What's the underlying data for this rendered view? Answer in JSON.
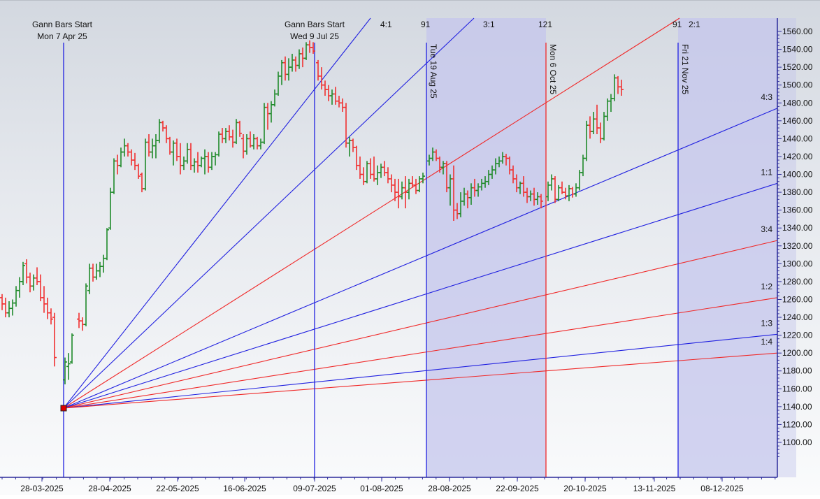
{
  "colors": {
    "up": "#1f8a2a",
    "down": "#f03030",
    "blue_line": "#2020e0",
    "red_line": "#f02828",
    "shade": "#c4c6ec",
    "axis": "#2a2a9a",
    "text": "#111111"
  },
  "annotations": {
    "start1_title": "Gann Bars Start",
    "start1_date": "Mon 7 Apr 25",
    "start2_title": "Gann Bars Start",
    "start2_date": "Wed 9 Jul 25",
    "label_4_1": "4:1",
    "label_91a": "91",
    "label_3_1": "3:1",
    "label_121": "121",
    "label_91b": "91",
    "label_2_1": "2:1",
    "vline_aug": "Tue 19 Aug 25",
    "vline_oct": "Mon 6 Oct 25",
    "vline_nov": "Fri 21 Nov 25"
  },
  "chart_data": {
    "type": "ohlc-bar",
    "title": "",
    "xlabel": "",
    "ylabel": "",
    "ylim": [
      1085,
      1575
    ],
    "grid": false,
    "x_ticks": [
      "28-03-2025",
      "28-04-2025",
      "22-05-2025",
      "16-06-2025",
      "09-07-2025",
      "01-08-2025",
      "28-08-2025",
      "22-09-2025",
      "20-10-2025",
      "13-11-2025",
      "08-12-2025"
    ],
    "y_ticks": [
      "1560.00",
      "1540.00",
      "1520.00",
      "1500.00",
      "1480.00",
      "1460.00",
      "1440.00",
      "1420.00",
      "1400.00",
      "1380.00",
      "1360.00",
      "1340.00",
      "1320.00",
      "1300.00",
      "1280.00",
      "1260.00",
      "1240.00",
      "1220.00",
      "1200.00",
      "1180.00",
      "1160.00",
      "1140.00",
      "1120.00",
      "1100.00"
    ],
    "gann_fan": {
      "origin": {
        "date": "Mon 7 Apr 25",
        "price": 1135
      },
      "angles": [
        {
          "name": "4:1",
          "color": "blue"
        },
        {
          "name": "3:1",
          "color": "blue"
        },
        {
          "name": "2:1",
          "color": "red"
        },
        {
          "name": "4:3",
          "color": "blue",
          "end_price": 1474
        },
        {
          "name": "1:1",
          "color": "blue",
          "end_price": 1390
        },
        {
          "name": "3:4",
          "color": "red",
          "end_price": 1326
        },
        {
          "name": "1:2",
          "color": "red",
          "end_price": 1262
        },
        {
          "name": "1:3",
          "color": "blue",
          "end_price": 1221
        },
        {
          "name": "1:4",
          "color": "red",
          "end_price": 1200
        }
      ]
    },
    "vertical_lines": [
      {
        "label": "Gann Bars Start Mon 7 Apr 25",
        "color": "blue"
      },
      {
        "label": "Gann Bars Start Wed 9 Jul 25",
        "color": "blue"
      },
      {
        "label": "Tue 19 Aug 25",
        "color": "blue",
        "bar_count": 91
      },
      {
        "label": "Mon 6 Oct 25",
        "color": "red",
        "bar_count": 121
      },
      {
        "label": "Fri 21 Nov 25",
        "color": "blue",
        "bar_count": 91
      }
    ],
    "price_summary": {
      "pre_start_high": 1305,
      "start_low": 1135,
      "jul_high": 1550,
      "aug_low": 1360,
      "sep_low": 1348,
      "sep_high": 1423,
      "oct_low": 1366,
      "latest_high": 1513,
      "latest_close": 1495
    }
  }
}
